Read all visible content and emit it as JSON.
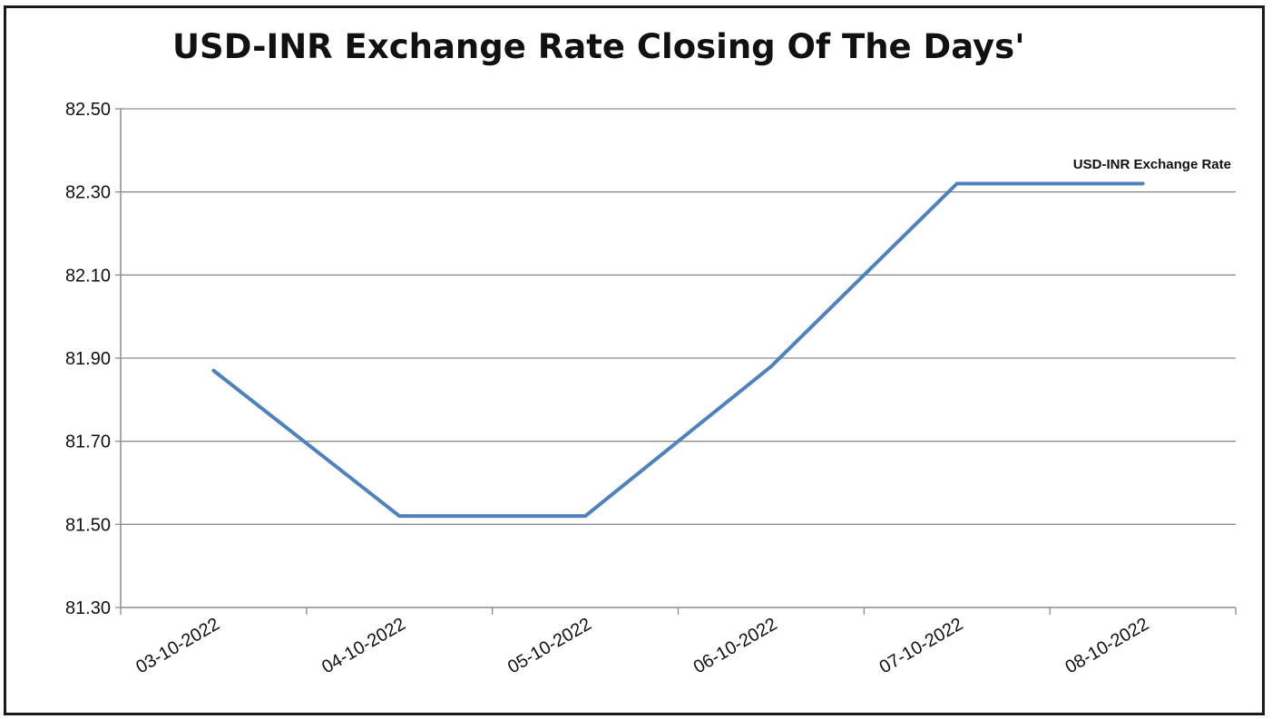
{
  "chart_data": {
    "type": "line",
    "title": "USD-INR Exchange Rate Closing Of The Days'",
    "xlabel": "",
    "ylabel": "",
    "categories": [
      "03-10-2022",
      "04-10-2022",
      "05-10-2022",
      "06-10-2022",
      "07-10-2022",
      "08-10-2022"
    ],
    "series": [
      {
        "name": "USD-INR Exchange Rate",
        "values": [
          81.87,
          81.52,
          81.52,
          81.88,
          82.32,
          82.32
        ],
        "color": "#4f81bd"
      }
    ],
    "ylim": [
      81.3,
      82.5
    ],
    "yticks": [
      "81.30",
      "81.50",
      "81.70",
      "81.90",
      "82.10",
      "82.30",
      "82.50"
    ],
    "grid": true,
    "legend_placement": "top-right"
  }
}
